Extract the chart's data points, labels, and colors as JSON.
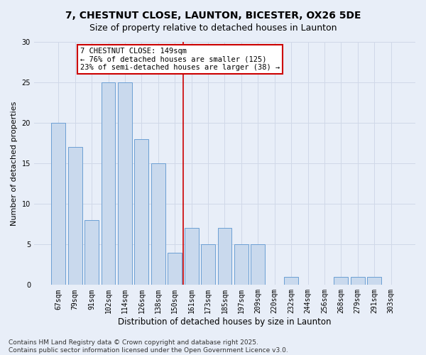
{
  "title_line1": "7, CHESTNUT CLOSE, LAUNTON, BICESTER, OX26 5DE",
  "title_line2": "Size of property relative to detached houses in Launton",
  "xlabel": "Distribution of detached houses by size in Launton",
  "ylabel": "Number of detached properties",
  "categories": [
    "67sqm",
    "79sqm",
    "91sqm",
    "102sqm",
    "114sqm",
    "126sqm",
    "138sqm",
    "150sqm",
    "161sqm",
    "173sqm",
    "185sqm",
    "197sqm",
    "209sqm",
    "220sqm",
    "232sqm",
    "244sqm",
    "256sqm",
    "268sqm",
    "279sqm",
    "291sqm",
    "303sqm"
  ],
  "values": [
    20,
    17,
    8,
    25,
    25,
    18,
    15,
    4,
    7,
    5,
    7,
    5,
    5,
    0,
    1,
    0,
    0,
    1,
    1,
    1,
    0
  ],
  "bar_color": "#c9d9ed",
  "bar_edge_color": "#6b9fd4",
  "vline_color": "#cc0000",
  "vline_x": 7.5,
  "annotation_text": "7 CHESTNUT CLOSE: 149sqm\n← 76% of detached houses are smaller (125)\n23% of semi-detached houses are larger (38) →",
  "annotation_box_color": "#ffffff",
  "annotation_box_edge": "#cc0000",
  "ylim": [
    0,
    30
  ],
  "yticks": [
    0,
    5,
    10,
    15,
    20,
    25,
    30
  ],
  "grid_color": "#d0d8e8",
  "bg_color": "#e8eef8",
  "footer": "Contains HM Land Registry data © Crown copyright and database right 2025.\nContains public sector information licensed under the Open Government Licence v3.0.",
  "title_fontsize": 10,
  "subtitle_fontsize": 9,
  "xlabel_fontsize": 8.5,
  "ylabel_fontsize": 8,
  "tick_fontsize": 7,
  "annotation_fontsize": 7.5,
  "footer_fontsize": 6.5
}
